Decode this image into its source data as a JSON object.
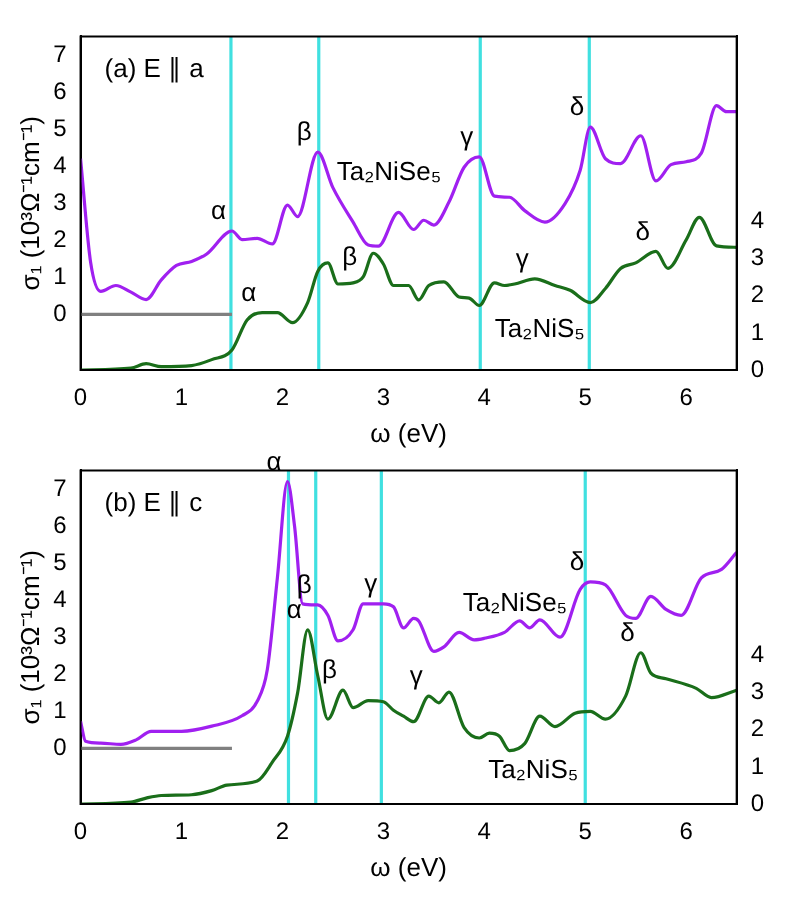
{
  "chart_data": [
    {
      "type": "line",
      "xlabel": "ω (eV)",
      "ylabel": "σ₁ (10³Ω⁻¹cm⁻¹)",
      "xlim": [
        0,
        6.5
      ],
      "xticks": [
        0,
        1,
        2,
        3,
        4,
        5,
        6
      ],
      "ylim": [
        -1.5,
        7.5
      ],
      "yticks": [
        0,
        1,
        2,
        3,
        4,
        5,
        6,
        7
      ],
      "y2lim": [
        0,
        9
      ],
      "y2ticks": [
        0,
        1,
        2,
        3,
        4
      ],
      "series": [
        {
          "name": "Ta₂NiSe₅",
          "color": "#a020f0",
          "x": [
            0,
            0.1,
            0.2,
            0.35,
            0.5,
            0.65,
            0.8,
            0.95,
            1.1,
            1.25,
            1.5,
            1.6,
            1.75,
            1.9,
            2.05,
            2.15,
            2.35,
            2.5,
            2.7,
            2.85,
            2.95,
            3.15,
            3.3,
            3.4,
            3.5,
            3.65,
            3.8,
            3.95,
            4.1,
            4.25,
            4.4,
            4.6,
            4.8,
            4.95,
            5.05,
            5.2,
            5.35,
            5.55,
            5.7,
            5.85,
            6.0,
            6.15,
            6.3,
            6.4,
            6.5
          ],
          "values": [
            4.2,
            1.4,
            0.62,
            0.78,
            0.6,
            0.4,
            0.93,
            1.32,
            1.43,
            1.63,
            2.25,
            2.02,
            2.05,
            1.9,
            2.95,
            2.64,
            4.38,
            3.42,
            2.49,
            1.87,
            1.84,
            2.75,
            2.29,
            2.54,
            2.41,
            3.03,
            3.97,
            4.25,
            3.19,
            3.16,
            2.8,
            2.49,
            2.99,
            3.89,
            5.05,
            4.2,
            4.07,
            4.82,
            3.6,
            4.04,
            4.12,
            4.35,
            5.63,
            5.47,
            5.47
          ]
        },
        {
          "name": "Ta₂NiS₅",
          "color": "#1a6e1a",
          "axis": "y2",
          "x": [
            0,
            0.5,
            0.65,
            0.8,
            1.1,
            1.3,
            1.5,
            1.65,
            1.8,
            1.95,
            2.1,
            2.25,
            2.35,
            2.45,
            2.55,
            2.7,
            2.8,
            2.9,
            3.0,
            3.1,
            3.25,
            3.35,
            3.45,
            3.6,
            3.75,
            3.85,
            3.95,
            4.1,
            4.2,
            4.3,
            4.5,
            4.7,
            4.85,
            5.05,
            5.2,
            5.35,
            5.5,
            5.7,
            5.82,
            6.0,
            6.13,
            6.3,
            6.5
          ],
          "values": [
            0,
            0.05,
            0.17,
            0.09,
            0.12,
            0.28,
            0.54,
            1.35,
            1.55,
            1.55,
            1.28,
            1.82,
            2.66,
            2.89,
            2.32,
            2.35,
            2.51,
            3.15,
            2.86,
            2.28,
            2.28,
            1.89,
            2.28,
            2.38,
            1.97,
            1.94,
            1.74,
            2.35,
            2.28,
            2.32,
            2.46,
            2.28,
            2.15,
            1.82,
            2.2,
            2.74,
            2.89,
            3.2,
            2.74,
            3.51,
            4.12,
            3.35,
            3.31
          ]
        },
        {
          "color": "#808080",
          "x": [
            0,
            1.5
          ],
          "values": [
            0,
            0
          ]
        }
      ],
      "ref_lines": [
        {
          "axis": "x",
          "value": 1.49,
          "color": "#40e0e0"
        },
        {
          "axis": "x",
          "value": 2.36,
          "color": "#40e0e0"
        },
        {
          "axis": "x",
          "value": 3.96,
          "color": "#40e0e0"
        },
        {
          "axis": "x",
          "value": 5.04,
          "color": "#40e0e0"
        }
      ],
      "annotations": [
        "(a) E ∥ a",
        {
          "text": "α",
          "x": 1.5,
          "y": 2.25
        },
        {
          "text": "β",
          "x": 2.35,
          "y": 4.38
        },
        {
          "text": "γ",
          "x": 3.95,
          "y": 4.25
        },
        {
          "text": "δ",
          "x": 5.05,
          "y": 5.05
        },
        {
          "text": "α",
          "x": 1.8,
          "y": 0.05
        },
        {
          "text": "β",
          "x": 2.8,
          "y": 1.01
        },
        {
          "text": "γ",
          "x": 4.5,
          "y": 0.96
        },
        {
          "text": "δ",
          "x": 5.7,
          "y": 1.7
        }
      ]
    },
    {
      "type": "line",
      "xlabel": "ω (eV)",
      "ylabel": "σ₁ (10³Ω⁻¹cm⁻¹)",
      "xlim": [
        0,
        6.5
      ],
      "xticks": [
        0,
        1,
        2,
        3,
        4,
        5,
        6
      ],
      "ylim": [
        -1.5,
        7.5
      ],
      "yticks": [
        0,
        1,
        2,
        3,
        4,
        5,
        6,
        7
      ],
      "y2lim": [
        0,
        9
      ],
      "y2ticks": [
        0,
        1,
        2,
        3,
        4
      ],
      "series": [
        {
          "name": "Ta₂NiSe₅",
          "color": "#a020f0",
          "x": [
            0,
            0.05,
            0.2,
            0.4,
            0.55,
            0.7,
            1.0,
            1.3,
            1.6,
            1.75,
            1.85,
            1.95,
            2.05,
            2.12,
            2.2,
            2.35,
            2.45,
            2.55,
            2.7,
            2.8,
            3.0,
            3.1,
            3.2,
            3.3,
            3.35,
            3.5,
            3.6,
            3.75,
            3.9,
            4.0,
            4.2,
            4.35,
            4.45,
            4.55,
            4.75,
            4.95,
            5.05,
            5.2,
            5.4,
            5.5,
            5.65,
            5.8,
            5.95,
            6.15,
            6.35,
            6.5
          ],
          "values": [
            0.73,
            0.19,
            0.14,
            0.11,
            0.23,
            0.46,
            0.46,
            0.6,
            0.88,
            1.27,
            2.12,
            4.6,
            7.2,
            6.0,
            3.9,
            3.87,
            3.59,
            2.9,
            3.2,
            3.9,
            3.9,
            3.82,
            3.25,
            3.51,
            3.44,
            2.62,
            2.74,
            3.13,
            2.93,
            2.97,
            3.13,
            3.44,
            3.25,
            3.47,
            3.0,
            4.29,
            4.49,
            4.41,
            3.59,
            3.51,
            4.1,
            3.75,
            3.59,
            4.6,
            4.83,
            5.29
          ]
        },
        {
          "name": "Ta₂NiS₅",
          "color": "#1a6e1a",
          "axis": "y2",
          "x": [
            0,
            0.5,
            0.65,
            0.8,
            1.1,
            1.3,
            1.45,
            1.75,
            1.9,
            2.05,
            2.15,
            2.25,
            2.35,
            2.45,
            2.6,
            2.7,
            2.85,
            3.0,
            3.1,
            3.2,
            3.3,
            3.45,
            3.55,
            3.65,
            3.8,
            3.95,
            4.05,
            4.15,
            4.25,
            4.4,
            4.55,
            4.7,
            4.9,
            5.05,
            5.2,
            5.4,
            5.55,
            5.65,
            5.8,
            6.1,
            6.25,
            6.5
          ],
          "values": [
            0,
            0.05,
            0.16,
            0.23,
            0.25,
            0.36,
            0.51,
            0.62,
            1.13,
            1.83,
            2.99,
            4.7,
            3.46,
            2.29,
            3.07,
            2.6,
            2.79,
            2.76,
            2.53,
            2.37,
            2.22,
            2.91,
            2.73,
            3.02,
            2.06,
            1.78,
            1.91,
            1.83,
            1.44,
            1.63,
            2.37,
            2.09,
            2.45,
            2.5,
            2.29,
            2.91,
            4.08,
            3.53,
            3.38,
            3.12,
            2.87,
            3.07
          ]
        },
        {
          "color": "#808080",
          "x": [
            0,
            1.5
          ],
          "values": [
            0,
            0
          ]
        }
      ],
      "ref_lines": [
        {
          "axis": "x",
          "value": 2.06,
          "color": "#40e0e0"
        },
        {
          "axis": "x",
          "value": 2.33,
          "color": "#40e0e0"
        },
        {
          "axis": "x",
          "value": 2.98,
          "color": "#40e0e0"
        },
        {
          "axis": "x",
          "value": 5.0,
          "color": "#40e0e0"
        }
      ],
      "annotations": [
        "(b) E ∥ c",
        {
          "text": "α",
          "x": 2.05,
          "y": 7.2
        },
        {
          "text": "β",
          "x": 2.35,
          "y": 3.87
        },
        {
          "text": "γ",
          "x": 3.0,
          "y": 3.9
        },
        {
          "text": "δ",
          "x": 5.05,
          "y": 4.49
        },
        {
          "text": "α",
          "x": 2.25,
          "y": 3.2
        },
        {
          "text": "β",
          "x": 2.6,
          "y": 1.57
        },
        {
          "text": "γ",
          "x": 3.45,
          "y": 1.41
        },
        {
          "text": "δ",
          "x": 5.55,
          "y": 2.58
        }
      ]
    }
  ]
}
